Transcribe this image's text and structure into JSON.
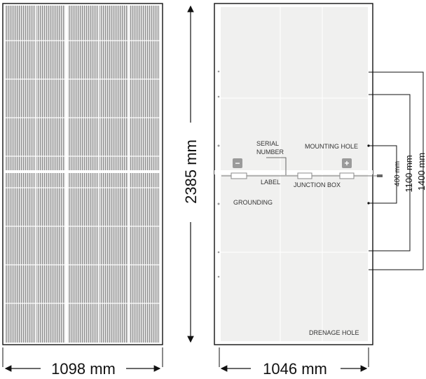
{
  "front_panel": {
    "width_label": "1098 mm",
    "height_label": "2385 mm"
  },
  "back_panel": {
    "width_label": "1046 mm",
    "labels": {
      "serial_number_line1": "SERIAL",
      "serial_number_line2": "NUMBER",
      "mounting_hole": "MOUNTING HOLE",
      "label": "LABEL",
      "junction_box": "JUNCTION BOX",
      "grounding": "GROUNDING",
      "drenage_hole": "DRENAGE HOLE"
    },
    "terminals": {
      "minus": "−",
      "plus": "+"
    }
  },
  "hole_spacings": {
    "short": "400 mm",
    "mid": "1100 mm",
    "long": "1400 mm"
  },
  "colors": {
    "cell_light": "#e2e2e2",
    "cell_line": "#9a9a9a",
    "back_sheet": "#f0f0ef",
    "outline": "#111111",
    "terminal_box": "#9a9a9a"
  }
}
